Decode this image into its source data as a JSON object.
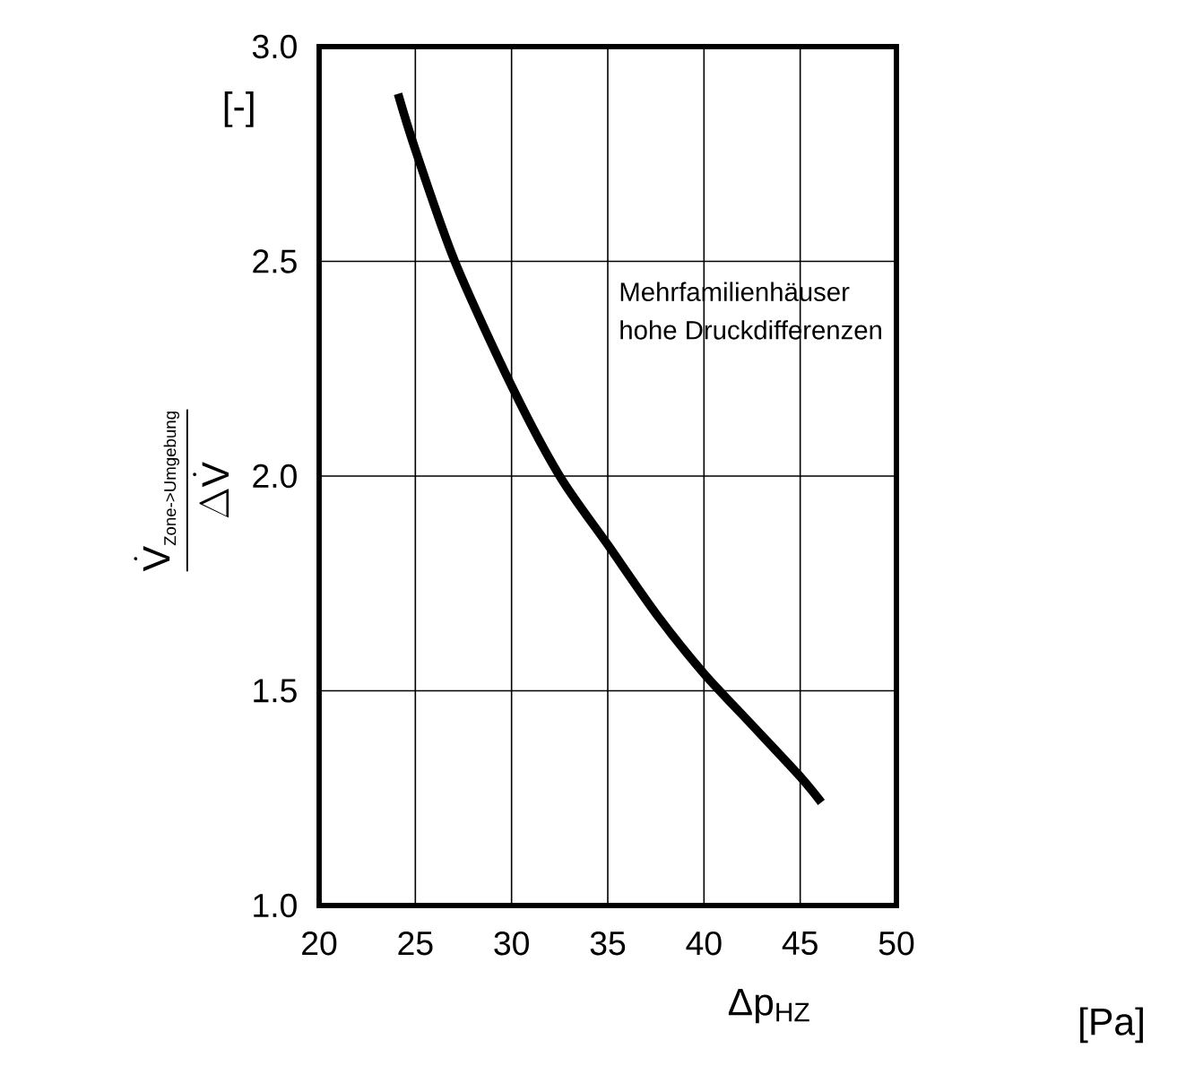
{
  "chart_data": {
    "type": "line",
    "xlabel": "Δp$_{HZ}$",
    "ylabel": "\\frac{\\dot{\\mbox{V}}_{\\mbox{\\scriptsize Zone->Umgebung}}}{\\Delta\\dot{\\mbox{V}}}",
    "annotations": [
      "Mehrfamilienhäuser",
      "hohe Druckdifferenzen",
      "[-]",
      "[Pa]"
    ],
    "series": [
      {
        "color": "#000000",
        "x": [
          24.1,
          25,
          27.05,
          30,
          32.5,
          35,
          37.5,
          40,
          42.5,
          45,
          46.1
        ],
        "values": [
          2.89,
          2.76,
          2.5,
          2.21,
          2.0,
          1.84,
          1.68,
          1.54,
          1.42,
          1.3,
          1.24
        ]
      }
    ],
    "xlim": [
      20,
      50
    ],
    "ylim": [
      1.0,
      3.0
    ],
    "xticks": [
      20,
      25,
      30,
      35,
      40,
      45,
      50
    ],
    "yticks": [
      {
        "value": 1.0,
        "label": "1.0"
      },
      {
        "value": 1.5,
        "label": "1.5"
      },
      {
        "value": 2.0,
        "label": "2.0"
      },
      {
        "value": 2.5,
        "label": "2.5"
      },
      {
        "value": 3.0,
        "label": "3.0"
      }
    ],
    "grid": true,
    "marker": "none",
    "line_style": "solid"
  }
}
